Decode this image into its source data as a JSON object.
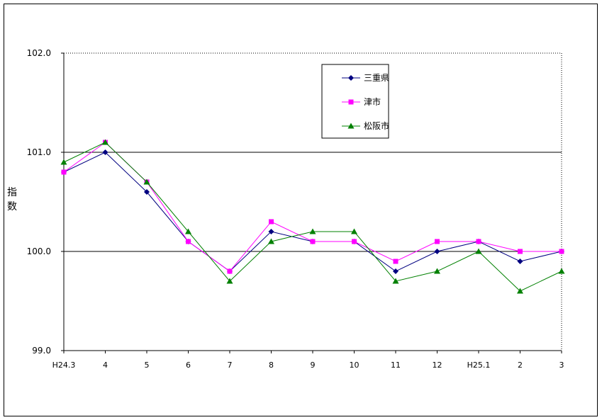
{
  "chart_data": {
    "type": "line",
    "ylabel": "指数",
    "ylim": [
      99.0,
      102.0
    ],
    "yticks": [
      "99.0",
      "100.0",
      "101.0",
      "102.0"
    ],
    "categories": [
      "H24.3",
      "4",
      "5",
      "6",
      "7",
      "8",
      "9",
      "10",
      "11",
      "12",
      "H25.1",
      "2",
      "3"
    ],
    "grid": "horizontal major lines at 100.0 and 101.0",
    "legend_position": "top-center",
    "series": [
      {
        "name": "三重県",
        "color": "#000080",
        "marker": "diamond",
        "values": [
          100.8,
          101.0,
          100.6,
          100.1,
          99.8,
          100.2,
          100.1,
          100.1,
          99.8,
          100.0,
          100.1,
          99.9,
          100.0
        ]
      },
      {
        "name": "津市",
        "color": "#ff00ff",
        "marker": "square",
        "values": [
          100.8,
          101.1,
          100.7,
          100.1,
          99.8,
          100.3,
          100.1,
          100.1,
          99.9,
          100.1,
          100.1,
          100.0,
          100.0
        ]
      },
      {
        "name": "松阪市",
        "color": "#008000",
        "marker": "triangle",
        "values": [
          100.9,
          101.1,
          100.7,
          100.2,
          99.7,
          100.1,
          100.2,
          100.2,
          99.7,
          99.8,
          100.0,
          99.6,
          99.8
        ]
      }
    ]
  }
}
